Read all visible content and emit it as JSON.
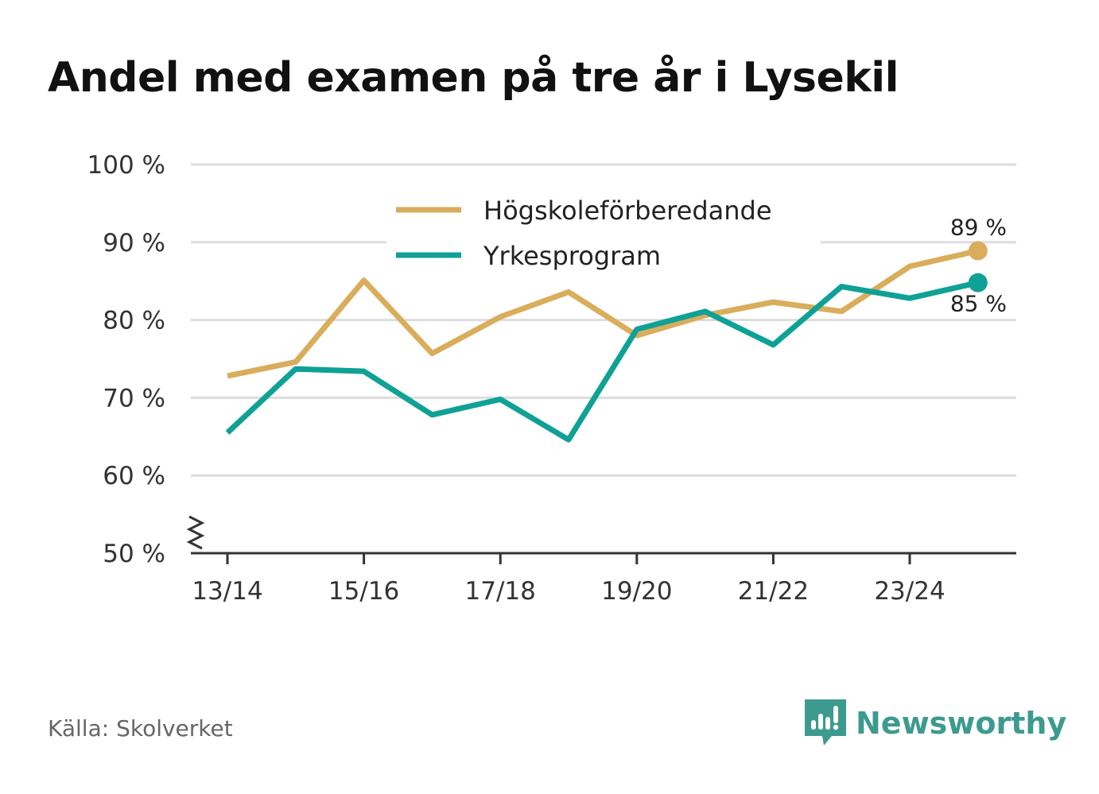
{
  "title": "Andel med examen på tre år i Lysekil",
  "source": "Källa: Skolverket",
  "brand": "Newsworthy",
  "colors": {
    "hogskole": "#d9ad5b",
    "yrkes": "#0fa196",
    "grid": "#dddddd",
    "axis": "#333333",
    "brand": "#3d9a8f"
  },
  "chart_data": {
    "type": "line",
    "title": "Andel med examen på tre år i Lysekil",
    "xlabel": "",
    "ylabel": "",
    "ylim": [
      50,
      100
    ],
    "yticks": [
      50,
      60,
      70,
      80,
      90,
      100
    ],
    "ytick_labels": [
      "50 %",
      "60 %",
      "70 %",
      "80 %",
      "90 %",
      "100 %"
    ],
    "axis_break": true,
    "grid": true,
    "legend_position": "top-center",
    "categories": [
      "13/14",
      "14/15",
      "15/16",
      "16/17",
      "17/18",
      "18/19",
      "19/20",
      "20/21",
      "21/22",
      "22/23",
      "23/24",
      "24/25"
    ],
    "xtick_labels": [
      "13/14",
      "15/16",
      "17/18",
      "19/20",
      "21/22",
      "23/24"
    ],
    "series": [
      {
        "name": "Högskoleförberedande",
        "color": "#d9ad5b",
        "values": [
          72.8,
          74.6,
          85.1,
          75.7,
          80.4,
          83.6,
          78.0,
          80.6,
          82.3,
          81.1,
          86.9,
          88.9
        ],
        "end_label": "89 %"
      },
      {
        "name": "Yrkesprogram",
        "color": "#0fa196",
        "values": [
          65.5,
          73.7,
          73.4,
          67.8,
          69.8,
          64.6,
          78.8,
          81.1,
          76.8,
          84.3,
          82.8,
          84.8
        ],
        "end_label": "85 %"
      }
    ]
  }
}
